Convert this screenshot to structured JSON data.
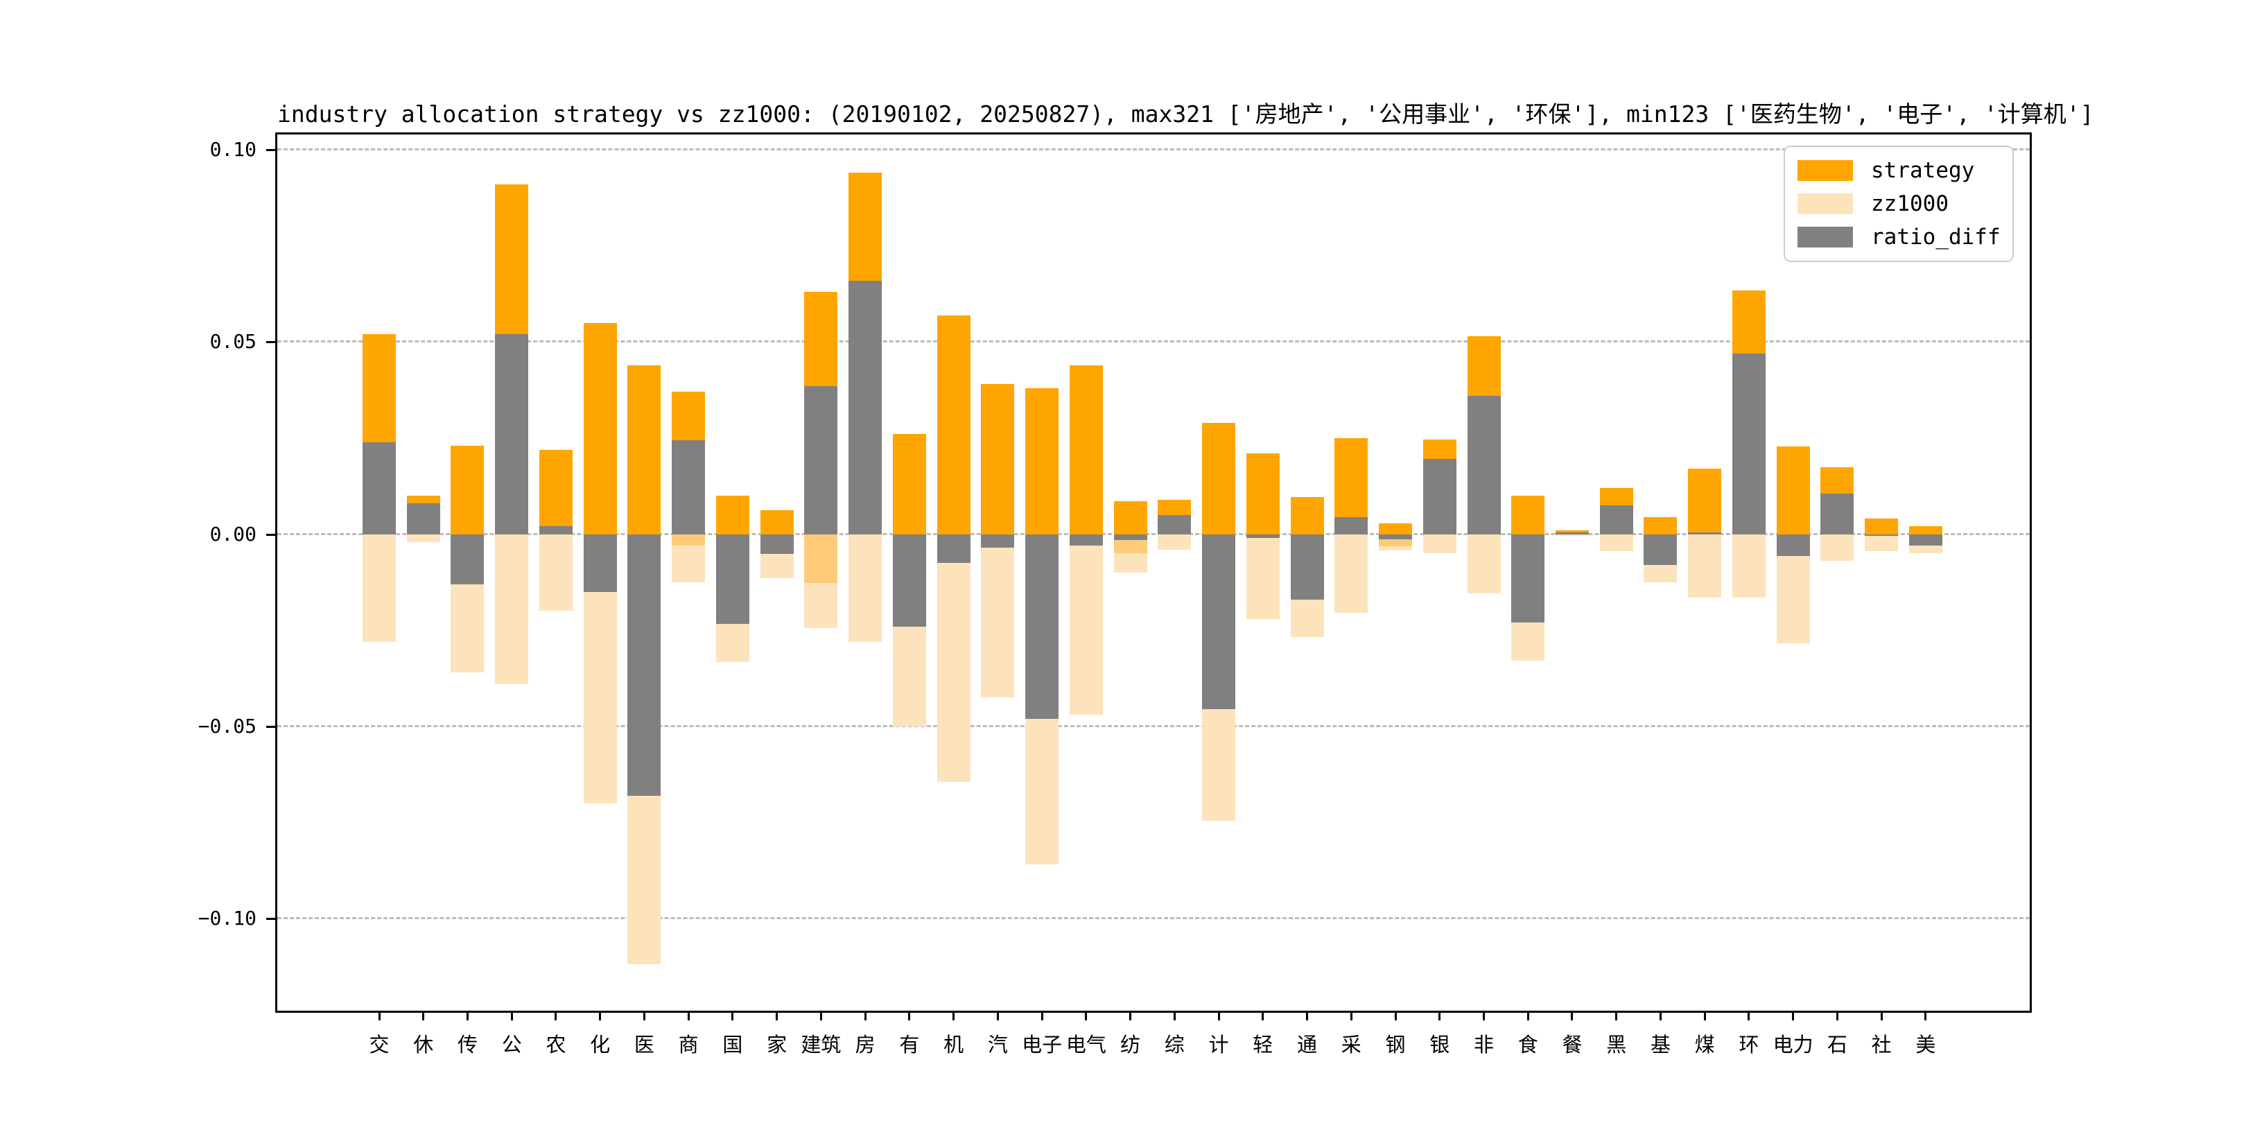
{
  "chart_data": {
    "type": "bar",
    "title": "industry allocation strategy vs zz1000: (20190102, 20250827), max321 ['房地产', '公用事业', '环保'], min123 ['医药生物', '电子', '计算机']",
    "xlabel": "",
    "ylabel": "",
    "ylim": [
      -0.124,
      0.104
    ],
    "grid": "dashed horizontal",
    "legend_position": "upper right",
    "zz1000_direction": "plotted downward as negative",
    "yticks": [
      {
        "label": "0.10",
        "value": 0.1
      },
      {
        "label": "0.05",
        "value": 0.05
      },
      {
        "label": "0.00",
        "value": 0.0
      },
      {
        "label": "−0.05",
        "value": -0.05
      },
      {
        "label": "−0.10",
        "value": -0.1
      }
    ],
    "categories": [
      "交",
      "休",
      "传",
      "公",
      "农",
      "化",
      "医",
      "商",
      "国",
      "家",
      "建筑",
      "房",
      "有",
      "机",
      "汽",
      "电子",
      "电气",
      "纺",
      "综",
      "计",
      "轻",
      "通",
      "采",
      "钢",
      "银",
      "非",
      "食",
      "餐",
      "黑",
      "基",
      "煤",
      "环",
      "电力",
      "石",
      "社",
      "美"
    ],
    "series": [
      {
        "name": "strategy",
        "color": "#FFA500",
        "values": [
          0.052,
          0.01,
          0.023,
          0.091,
          0.022,
          0.055,
          0.044,
          0.037,
          0.01,
          0.0063,
          0.063,
          0.094,
          0.026,
          0.057,
          0.039,
          0.038,
          0.044,
          0.0085,
          0.009,
          0.029,
          0.021,
          0.0097,
          0.025,
          0.0028,
          0.0246,
          0.0515,
          0.01,
          0.001,
          0.012,
          0.0045,
          0.017,
          0.0635,
          0.0228,
          0.0175,
          0.004,
          0.002
        ]
      },
      {
        "name": "zz1000",
        "color": "#FDE3BC",
        "values": [
          0.028,
          0.002,
          0.036,
          0.039,
          0.02,
          0.07,
          0.112,
          0.0125,
          0.0333,
          0.0115,
          0.0245,
          0.028,
          0.05,
          0.0645,
          0.0425,
          0.086,
          0.047,
          0.01,
          0.004,
          0.0745,
          0.022,
          0.0267,
          0.0205,
          0.0042,
          0.005,
          0.0155,
          0.033,
          0.0005,
          0.0045,
          0.0125,
          0.0165,
          0.0165,
          0.0284,
          0.007,
          0.0044,
          0.005
        ]
      },
      {
        "name": "ratio_diff",
        "color": "#808080",
        "values": [
          0.024,
          0.008,
          -0.013,
          0.052,
          0.002,
          -0.015,
          -0.068,
          0.0245,
          -0.0233,
          -0.0052,
          0.0385,
          0.066,
          -0.024,
          -0.0075,
          -0.0035,
          -0.048,
          -0.003,
          -0.0015,
          0.005,
          -0.0455,
          -0.001,
          -0.017,
          0.0045,
          -0.0014,
          0.0196,
          0.036,
          -0.023,
          0.0005,
          0.0075,
          -0.008,
          0.0005,
          0.047,
          -0.0056,
          0.0105,
          -0.0004,
          -0.003
        ]
      }
    ],
    "dark_overlap_bands": [
      {
        "category": "商",
        "index": 7,
        "depth": 0.003
      },
      {
        "category": "建筑",
        "index": 10,
        "depth": 0.0127
      },
      {
        "category": "纺",
        "index": 17,
        "depth": 0.005
      },
      {
        "category": "钢",
        "index": 23,
        "depth": 0.0031
      }
    ],
    "colors": {
      "strategy_orange": "#FFA500",
      "zz1000_peach": "#FDE3BC",
      "zz1000_over_orange": "#FDCB79",
      "ratio_gray": "#808080",
      "gridline": "#BCBCBC",
      "spine": "#000000"
    },
    "legend": [
      {
        "label": "strategy",
        "color": "#FFA500"
      },
      {
        "label": "zz1000",
        "color": "#FDE3BC"
      },
      {
        "label": "ratio_diff",
        "color": "#808080"
      }
    ]
  }
}
